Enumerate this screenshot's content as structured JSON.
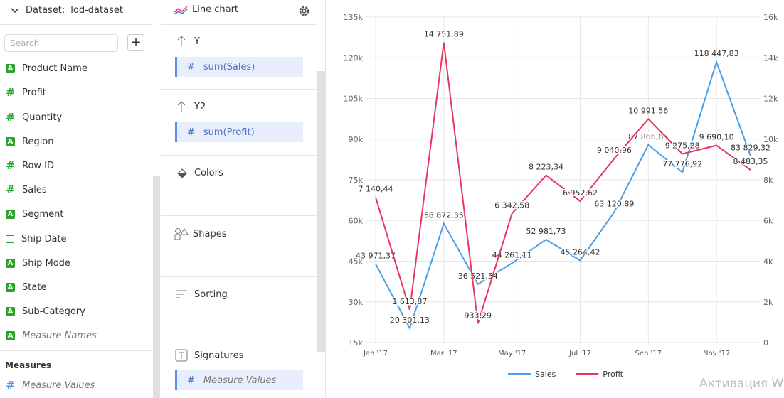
{
  "sidebar": {
    "dataset_label": "Dataset:",
    "dataset_name": "lod-dataset",
    "search_placeholder": "Search",
    "fields": [
      "Product Name",
      "Profit",
      "Quantity",
      "Region",
      "Row ID",
      "Sales",
      "Segment",
      "Ship Date",
      "Ship Mode",
      "State",
      "Sub-Category",
      "Measure Names"
    ],
    "measures_title": "Measures",
    "measures": [
      "Measure Values"
    ]
  },
  "wizard": {
    "chart_type": "Line chart",
    "sections": [
      {
        "title": "Y",
        "items": [
          "sum(Sales)"
        ]
      },
      {
        "title": "Y2",
        "items": [
          "sum(Profit)"
        ]
      },
      {
        "title": "Colors"
      },
      {
        "title": "Shapes"
      },
      {
        "title": "Sorting"
      },
      {
        "title": "Signatures",
        "items": [
          "Measure Values"
        ]
      }
    ]
  },
  "chart_data": {
    "type": "line",
    "categories": [
      "Jan '17",
      null,
      "Mar '17",
      null,
      "May '17",
      null,
      "Jul '17",
      null,
      "Sep '17",
      null,
      "Nov '17",
      null
    ],
    "series": [
      {
        "name": "Sales",
        "color": "#4a9ee8",
        "values": [
          43971.37,
          20301.13,
          58872.35,
          36521.54,
          44261.11,
          52981.73,
          45264.42,
          63120.89,
          87866.65,
          77776.92,
          118447.83,
          83829.32
        ],
        "value_labels": [
          "43 971,37",
          "20 301,13",
          "58 872,35",
          "36 521,54",
          "44 261,11",
          "52 981,73",
          "45 264,42",
          "63 120,89",
          "87 866,65",
          "77 776,92",
          "118 447,83",
          "83 829,32"
        ]
      },
      {
        "name": "Profit",
        "color": "#e8365d",
        "axis": "y2",
        "values": [
          7140.44,
          1613.87,
          14751.89,
          933.29,
          6342.58,
          8223.34,
          6952.62,
          9040.96,
          10991.56,
          9275.28,
          9690.1,
          8483.35
        ],
        "value_labels": [
          "7 140,44",
          "1 613,87",
          "14 751,89",
          "933,29",
          "6 342,58",
          "8 223,34",
          "6 952,62",
          "9 040,96",
          "10 991,56",
          "9 275,28",
          "9 690,10",
          "8 483,35"
        ]
      }
    ],
    "ylim": [
      15000,
      135000
    ],
    "yticks": [
      {
        "value": 15000,
        "label": "15k"
      },
      {
        "value": 30000,
        "label": "30k"
      },
      {
        "value": 45000,
        "label": "45k"
      },
      {
        "value": 60000,
        "label": "60k"
      },
      {
        "value": 75000,
        "label": "75k"
      },
      {
        "value": 90000,
        "label": "90k"
      },
      {
        "value": 105000,
        "label": "105k"
      },
      {
        "value": 120000,
        "label": "120k"
      },
      {
        "value": 135000,
        "label": "135k"
      }
    ],
    "y2lim": [
      0,
      16000
    ],
    "y2ticks": [
      0,
      {
        "value": 2000,
        "label": "2k"
      },
      {
        "value": 4000,
        "label": "4k"
      },
      {
        "value": 6000,
        "label": "6k"
      },
      {
        "value": 8000,
        "label": "8k"
      },
      {
        "value": 10000,
        "label": "10k"
      },
      {
        "value": 12000,
        "label": "12k"
      },
      {
        "value": 14000,
        "label": "14k"
      },
      {
        "value": 16000,
        "label": "16k"
      }
    ],
    "grid": true,
    "legend": "bottom"
  },
  "watermark": "Активация Wi"
}
